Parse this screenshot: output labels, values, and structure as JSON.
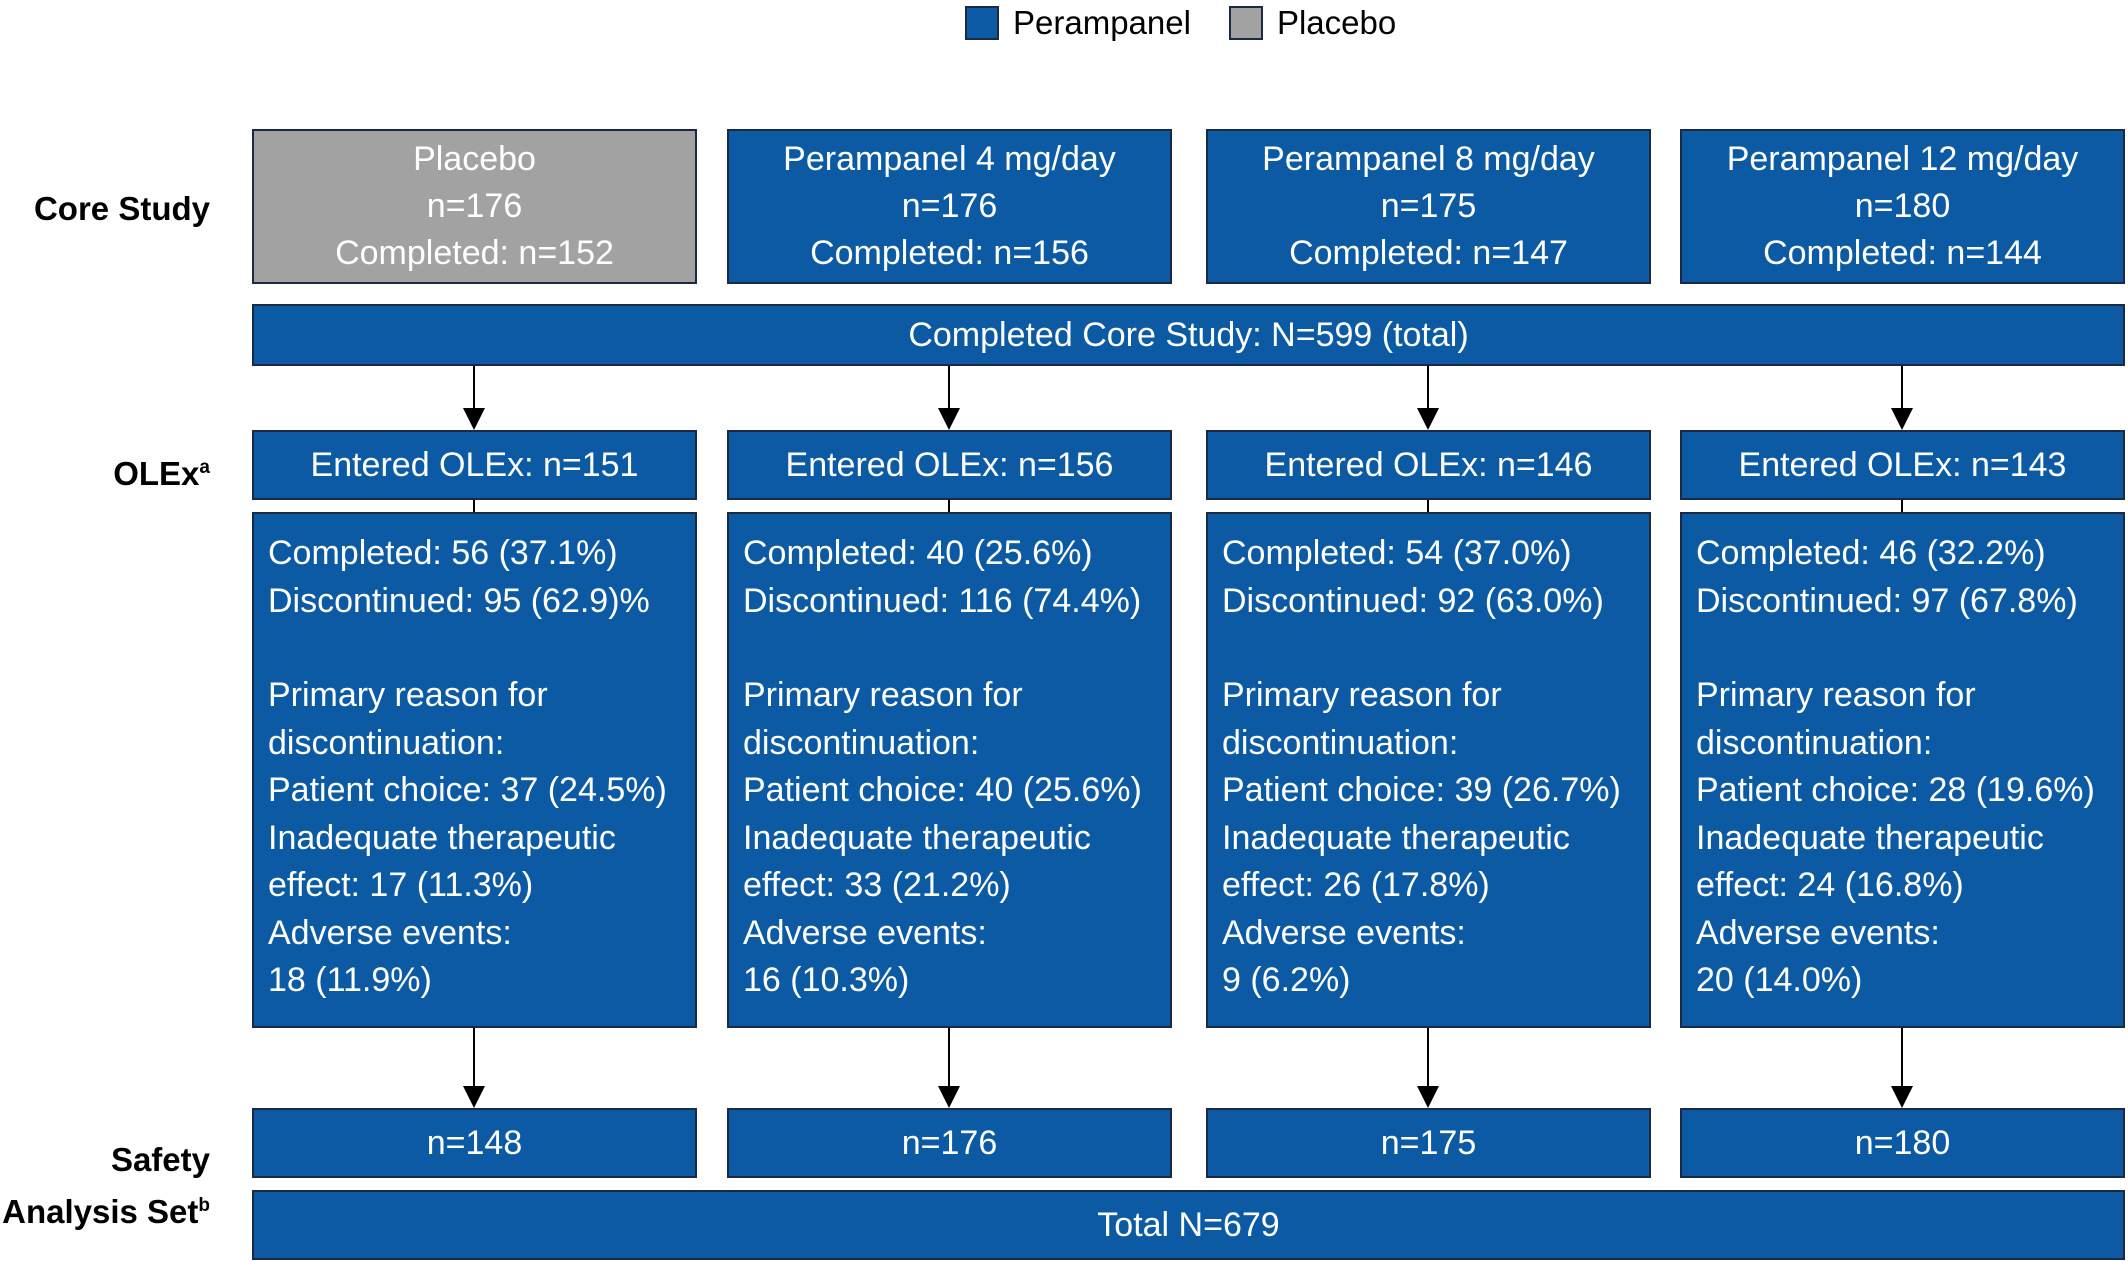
{
  "legend": [
    {
      "label": "Perampanel",
      "color": "#0c5aa3"
    },
    {
      "label": "Placebo",
      "color": "#a2a2a2"
    }
  ],
  "row_labels": {
    "core": "Core Study",
    "olex": "OLEx",
    "olex_sup": "a",
    "safety_line1": "Safety",
    "safety_line2": "Analysis Set",
    "safety_sup": "b"
  },
  "groups": [
    {
      "core": {
        "name": "Placebo",
        "n": "n=176",
        "completed": "Completed: n=152"
      },
      "entered": "Entered OLEx: n=151",
      "completed": "Completed: 56 (37.1%)",
      "discontinued": "Discontinued: 95 (62.9)%",
      "reason_head1": "Primary reason for",
      "reason_head2": "discontinuation:",
      "patient_choice": "Patient choice: 37 (24.5%)",
      "inadequate1": "Inadequate therapeutic",
      "inadequate2": "effect: 17 (11.3%)",
      "adverse1": "Adverse events:",
      "adverse2": "18 (11.9%)",
      "safety": "n=148"
    },
    {
      "core": {
        "name": "Perampanel 4 mg/day",
        "n": "n=176",
        "completed": "Completed: n=156"
      },
      "entered": "Entered OLEx: n=156",
      "completed": "Completed: 40 (25.6%)",
      "discontinued": "Discontinued: 116 (74.4%)",
      "reason_head1": "Primary reason for",
      "reason_head2": "discontinuation:",
      "patient_choice": "Patient choice: 40 (25.6%)",
      "inadequate1": "Inadequate therapeutic",
      "inadequate2": "effect: 33 (21.2%)",
      "adverse1": "Adverse events:",
      "adverse2": "16 (10.3%)",
      "safety": "n=176"
    },
    {
      "core": {
        "name": "Perampanel 8 mg/day",
        "n": "n=175",
        "completed": "Completed: n=147"
      },
      "entered": "Entered OLEx: n=146",
      "completed": "Completed: 54 (37.0%)",
      "discontinued": "Discontinued: 92 (63.0%)",
      "reason_head1": "Primary reason for",
      "reason_head2": "discontinuation:",
      "patient_choice": "Patient choice: 39 (26.7%)",
      "inadequate1": "Inadequate therapeutic",
      "inadequate2": "effect: 26 (17.8%)",
      "adverse1": "Adverse events:",
      "adverse2": "9 (6.2%)",
      "safety": "n=175"
    },
    {
      "core": {
        "name": "Perampanel 12 mg/day",
        "n": "n=180",
        "completed": "Completed: n=144"
      },
      "entered": "Entered OLEx: n=143",
      "completed": "Completed: 46 (32.2%)",
      "discontinued": "Discontinued: 97 (67.8%)",
      "reason_head1": "Primary reason for",
      "reason_head2": "discontinuation:",
      "patient_choice": "Patient choice: 28 (19.6%)",
      "inadequate1": "Inadequate therapeutic",
      "inadequate2": "effect: 24 (16.8%)",
      "adverse1": "Adverse events:",
      "adverse2": "20 (14.0%)",
      "safety": "n=180"
    }
  ],
  "completed_core_total": "Completed Core Study: N=599 (total)",
  "safety_total": "Total N=679"
}
